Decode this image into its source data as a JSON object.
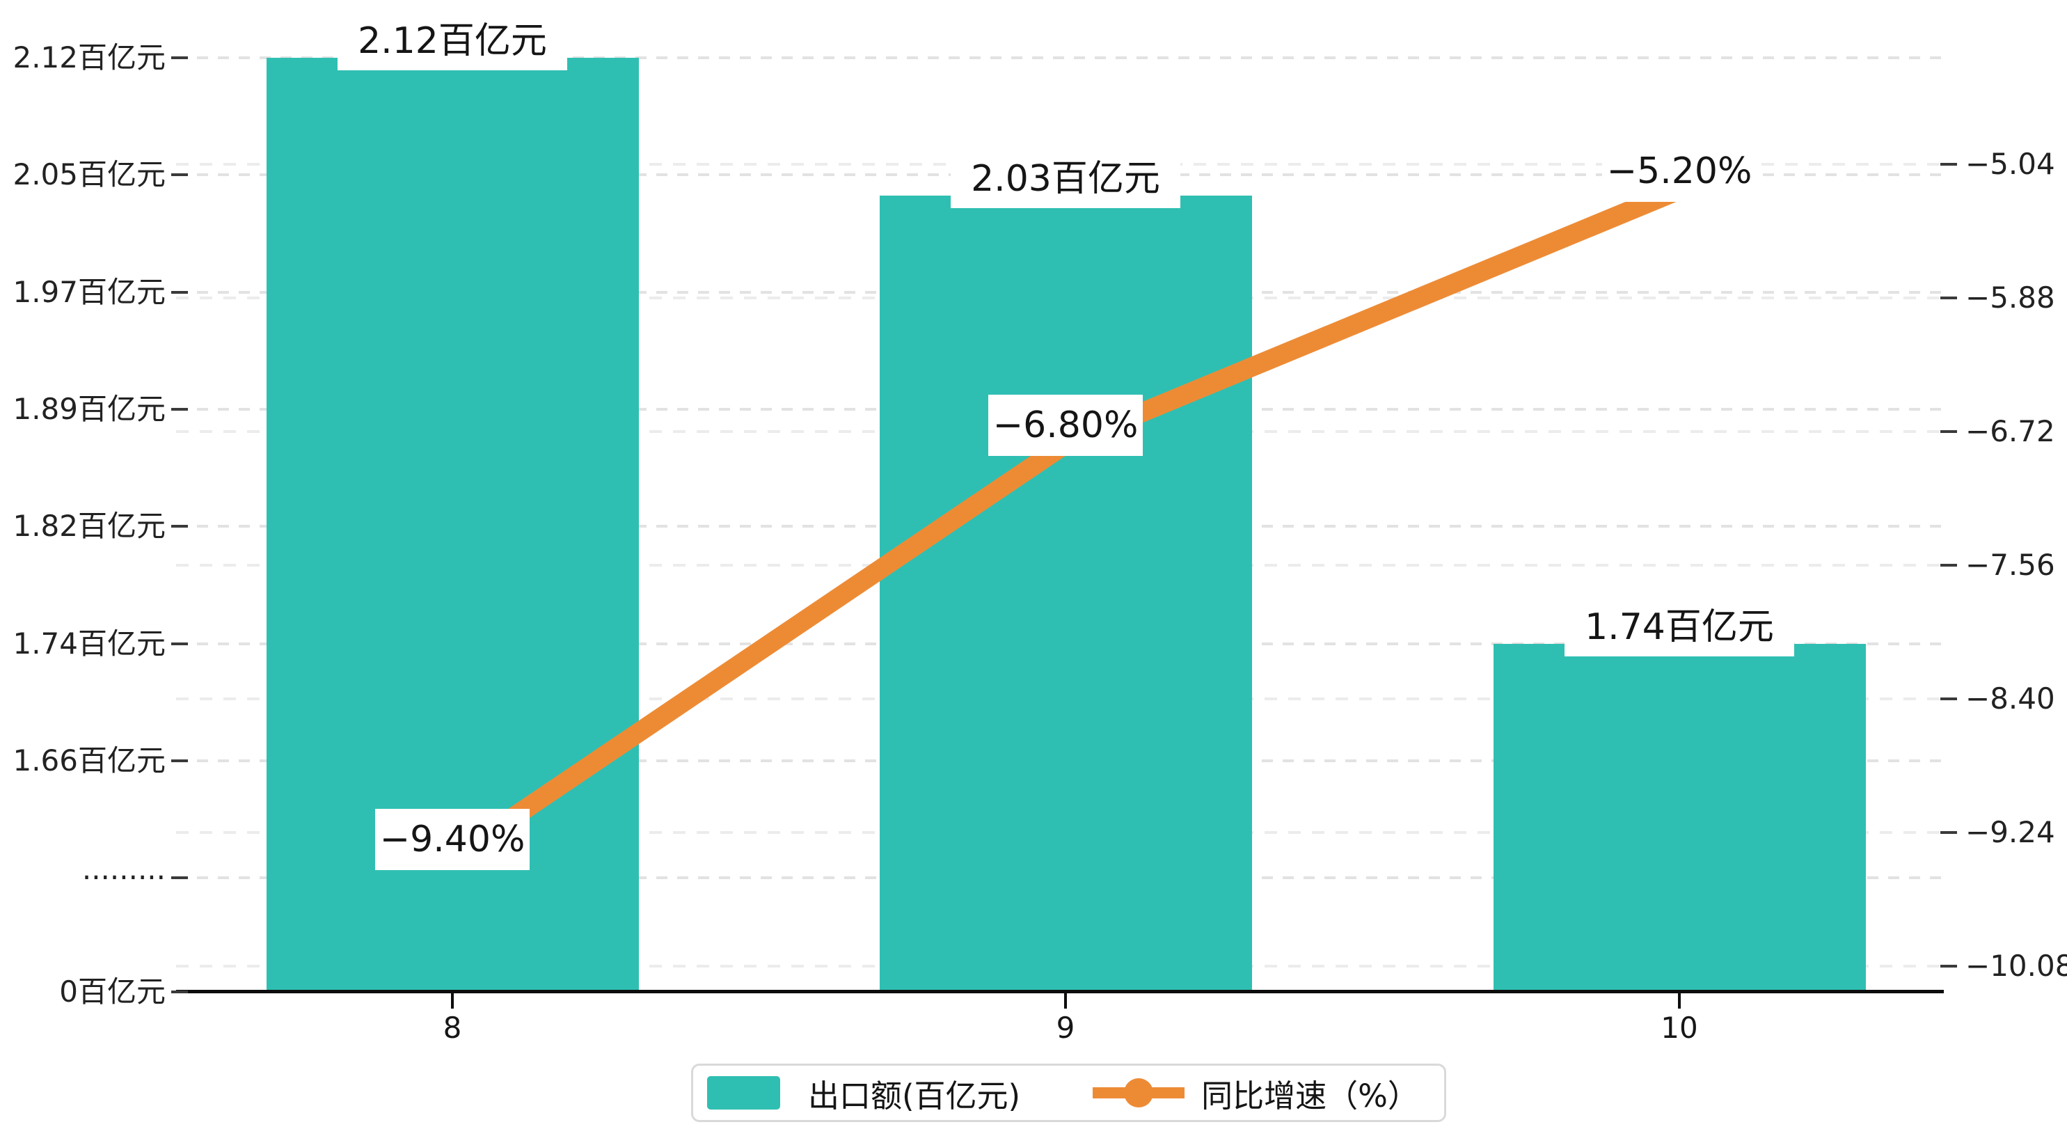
{
  "chart_data": {
    "type": "bar+line dual-axis combo",
    "categories": [
      "8",
      "9",
      "10"
    ],
    "series": [
      {
        "name": "出口额(百亿元)",
        "type": "bar",
        "axis": "left",
        "values": [
          2.12,
          2.03,
          1.74
        ],
        "data_labels": [
          "2.12百亿元",
          "2.03百亿元",
          "1.74百亿元"
        ],
        "color": "#2FBFB2"
      },
      {
        "name": "同比增速（%）",
        "type": "line",
        "axis": "right",
        "values": [
          -9.4,
          -6.8,
          -5.2
        ],
        "data_labels": [
          "−9.40%",
          "−6.80%",
          "−5.20%"
        ],
        "color": "#ED8B35"
      }
    ],
    "left_axis": {
      "tick_labels": [
        "2.12百亿元",
        "2.05百亿元",
        "1.97百亿元",
        "1.89百亿元",
        "1.82百亿元",
        "1.74百亿元",
        "1.66百亿元",
        "·········",
        "0百亿元"
      ],
      "tick_values": [
        2.12,
        2.05,
        1.97,
        1.89,
        1.82,
        1.74,
        1.66,
        null,
        0
      ],
      "axis_break": true,
      "range_shown": [
        0,
        2.12
      ]
    },
    "right_axis": {
      "tick_labels": [
        "−5.04",
        "−5.88",
        "−6.72",
        "−7.56",
        "−8.40",
        "−9.24",
        "−10.08"
      ],
      "tick_values": [
        -5.04,
        -5.88,
        -6.72,
        -7.56,
        -8.4,
        -9.24,
        -10.08
      ]
    },
    "x_axis": {
      "tick_labels": [
        "8",
        "9",
        "10"
      ]
    },
    "legend": {
      "position": "bottom",
      "items": [
        {
          "label": "出口额(百亿元)",
          "marker": "bar-swatch"
        },
        {
          "label": "同比增速（%）",
          "marker": "line-dot"
        }
      ]
    },
    "grid": true,
    "title": ""
  },
  "colors": {
    "bar": "#2FBFB2",
    "line": "#ED8B35",
    "axis": "#0d0d0d",
    "text": "#1c1c1c",
    "label_bg": "#ffffff",
    "grid_left": "#e2e2e2",
    "grid_right": "#ececec",
    "legend_border": "#d9d9d9"
  }
}
